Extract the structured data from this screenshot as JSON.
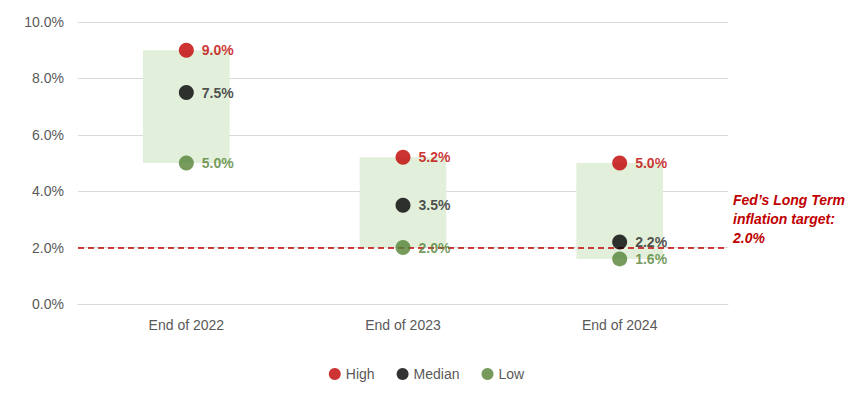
{
  "chart_data": {
    "type": "scatter",
    "categories": [
      "End of 2022",
      "End of 2023",
      "End of 2024"
    ],
    "series": [
      {
        "name": "High",
        "color": "#c00000",
        "values": [
          9.0,
          5.2,
          5.0
        ],
        "value_labels": [
          "9.0%",
          "5.2%",
          "5.0%"
        ]
      },
      {
        "name": "Median",
        "color": "#000000",
        "values": [
          7.5,
          3.5,
          2.2
        ],
        "value_labels": [
          "7.5%",
          "3.5%",
          "2.2%"
        ]
      },
      {
        "name": "Low",
        "color": "#548235",
        "values": [
          5.0,
          2.0,
          1.6
        ],
        "value_labels": [
          "5.0%",
          "2.0%",
          "1.6%"
        ]
      }
    ],
    "ylim": [
      0,
      10
    ],
    "yticks": [
      {
        "value": 0,
        "label": "0.0%"
      },
      {
        "value": 2,
        "label": "2.0%"
      },
      {
        "value": 4,
        "label": "4.0%"
      },
      {
        "value": 6,
        "label": "6.0%"
      },
      {
        "value": 8,
        "label": "8.0%"
      },
      {
        "value": 10,
        "label": "10.0%"
      }
    ],
    "grid": true,
    "legend": "bottom",
    "data_labels": true,
    "reference_line": {
      "value": 2.0,
      "label_lines": [
        "Fed’s Long Term",
        "inflation target:",
        "2.0%"
      ],
      "color": "#c00000",
      "line_style": "dashed"
    }
  }
}
